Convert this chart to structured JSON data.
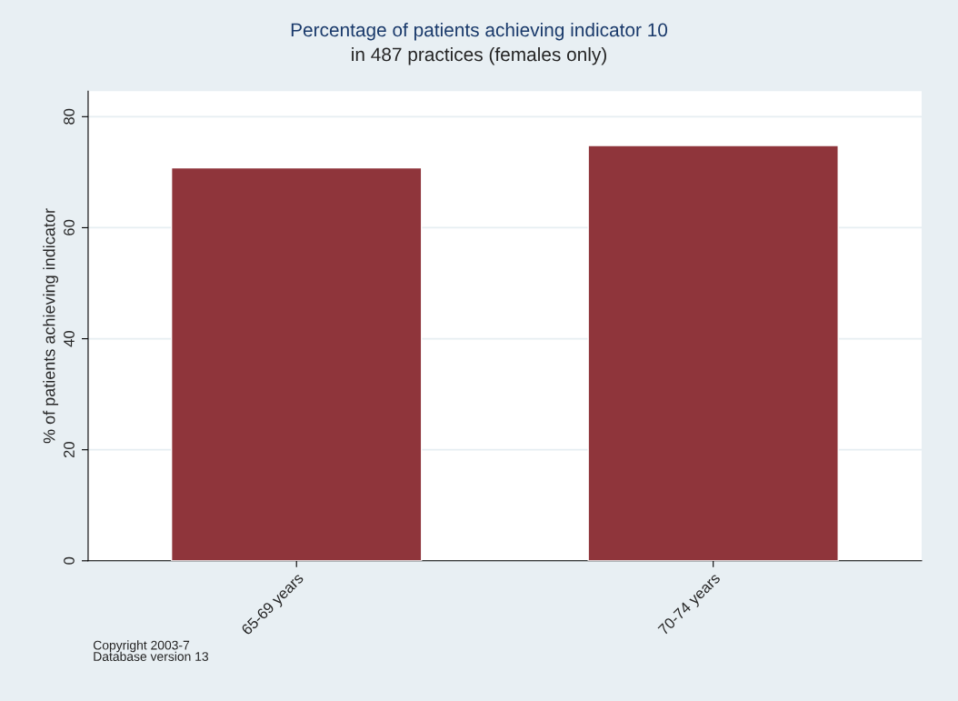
{
  "chart_data": {
    "type": "bar",
    "title": "Percentage of patients achieving indicator 10",
    "subtitle": "in 487 practices (females only)",
    "ylabel": "% of patients achieving indicator",
    "categories": [
      "65-69 years",
      "70-74 years"
    ],
    "values": [
      70.8,
      74.8
    ],
    "color": "#8f353b",
    "ylim": [
      0,
      84.6
    ],
    "yticks": [
      0,
      20,
      40,
      60,
      80
    ],
    "grid": "y",
    "annotations": [
      "Copyright 2003-7\nDatabase version 13"
    ]
  }
}
